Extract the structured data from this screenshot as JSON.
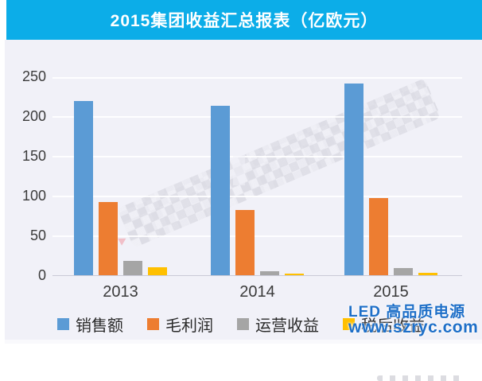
{
  "banner": {
    "title": "2015集团收益汇总报表（亿欧元）",
    "bg_color": "#0CADE8",
    "text_color": "#FFFFFF"
  },
  "chart_data": {
    "type": "bar",
    "title": "2015集团收益汇总报表（亿欧元）",
    "categories": [
      "2013",
      "2014",
      "2015"
    ],
    "series": [
      {
        "name": "销售额",
        "color": "#5B9BD5",
        "values": [
          219,
          213,
          241
        ]
      },
      {
        "name": "毛利润",
        "color": "#ED7D31",
        "values": [
          92,
          82,
          97
        ]
      },
      {
        "name": "运营收益",
        "color": "#A5A5A5",
        "values": [
          18,
          5,
          9
        ]
      },
      {
        "name": "税后收益",
        "color": "#FFC000",
        "values": [
          10,
          2,
          3
        ]
      }
    ],
    "xlabel": "",
    "ylabel": "",
    "ylim": [
      0,
      250
    ],
    "yticks": [
      0,
      50,
      100,
      150,
      200,
      250
    ],
    "grid": true,
    "legend_position": "bottom",
    "plot_bg": "#F1F1F8",
    "axis_text_color": "#3B3B3B"
  },
  "watermark": {
    "line1": "LED 高品质电源",
    "line2": "www.szryc.com",
    "color": "#1E6FC8"
  }
}
